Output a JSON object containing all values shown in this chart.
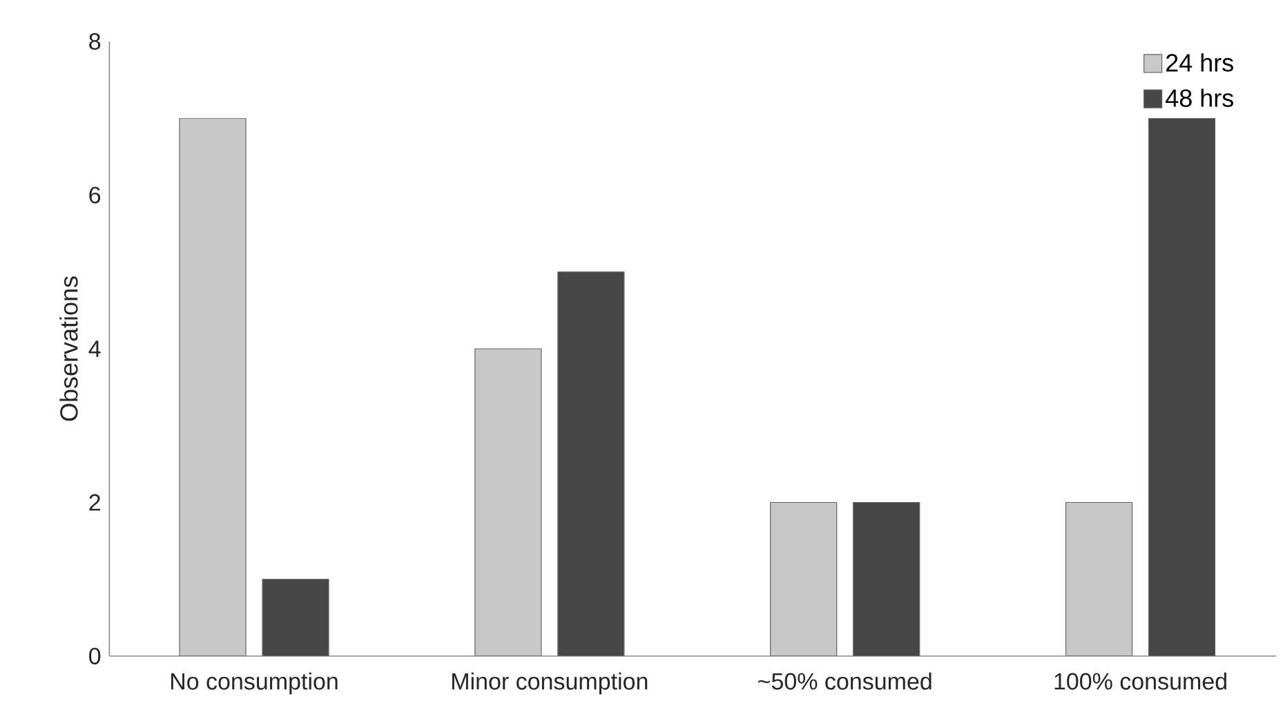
{
  "chart_data": {
    "type": "bar",
    "ylabel": "Observations",
    "categories": [
      "No consumption",
      "Minor consumption",
      "~50% consumed",
      "100% consumed"
    ],
    "series": [
      {
        "name": "24 hrs",
        "color": "#c8c8c8",
        "values": [
          7,
          4,
          2,
          2
        ]
      },
      {
        "name": "48 hrs",
        "color": "#474747",
        "values": [
          1,
          5,
          2,
          7
        ]
      }
    ],
    "ylim": [
      0,
      8
    ],
    "yticks": [
      0,
      2,
      4,
      6,
      8
    ],
    "legend": "top right"
  }
}
